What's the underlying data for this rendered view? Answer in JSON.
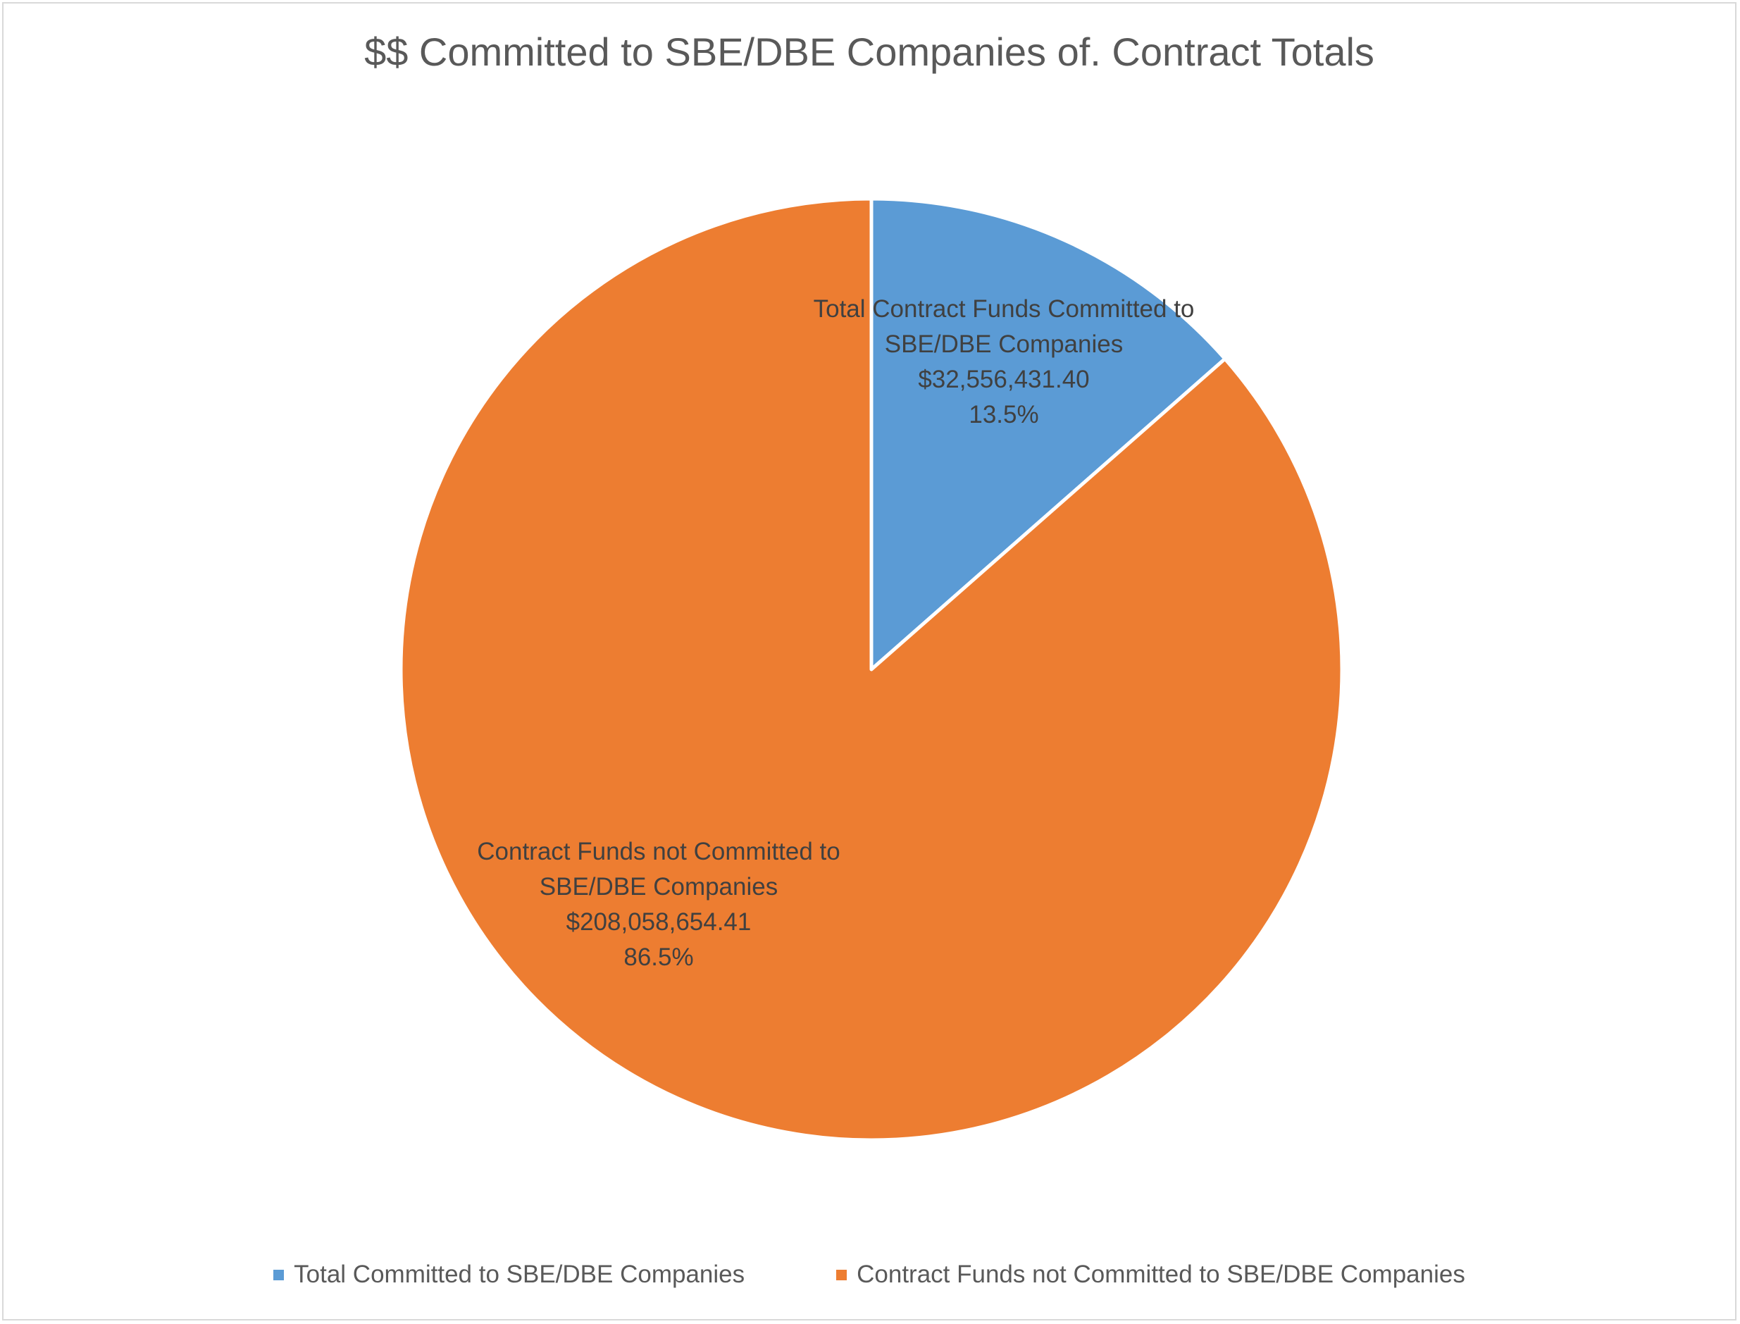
{
  "chart_data": {
    "type": "pie",
    "title": "$$ Committed to SBE/DBE Companies of. Contract Totals",
    "slices": [
      {
        "legend": "Total Committed to SBE/DBE Companies",
        "label_lines": [
          "Total Contract Funds Committed to",
          "SBE/DBE Companies",
          "$32,556,431.40",
          "13.5%"
        ],
        "value": 32556431.4,
        "percent": 13.5,
        "color": "#5b9bd5"
      },
      {
        "legend": "Contract Funds not Committed to SBE/DBE Companies",
        "label_lines": [
          "Contract Funds not Committed to",
          "SBE/DBE Companies",
          "$208,058,654.41",
          "86.5%"
        ],
        "value": 208058654.41,
        "percent": 86.5,
        "color": "#ed7d31"
      }
    ],
    "start_angle_deg": 0,
    "direction": "clockwise",
    "legend_position": "bottom"
  }
}
